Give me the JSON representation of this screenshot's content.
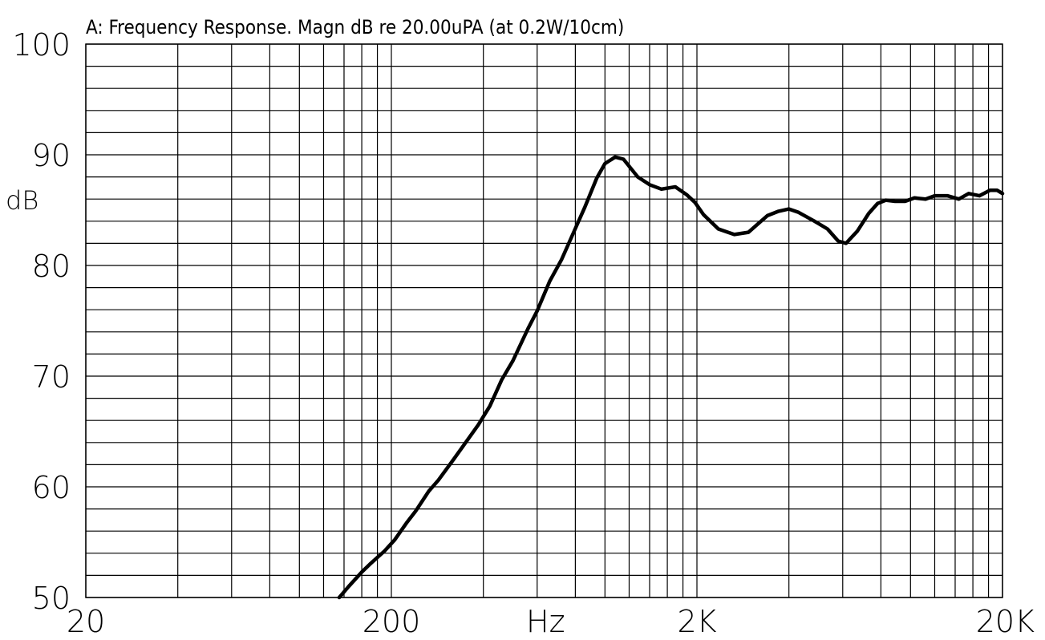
{
  "chart_data": {
    "type": "line",
    "title": "A: Frequency Response. Magn dB re 20.00uPA (at 0.2W/10cm)",
    "xlabel": "Hz",
    "ylabel": "dB",
    "xscale": "log",
    "xlim": [
      20,
      20000
    ],
    "ylim": [
      50,
      100
    ],
    "grid": true,
    "legend": "none",
    "x_ticks": [
      {
        "value": 20,
        "label": "20"
      },
      {
        "value": 200,
        "label": "200"
      },
      {
        "value": 2000,
        "label": "2K"
      },
      {
        "value": 20000,
        "label": "20K"
      }
    ],
    "y_ticks": [
      {
        "value": 100,
        "label": "100"
      },
      {
        "value": 90,
        "label": "90"
      },
      {
        "value": 80,
        "label": "80"
      },
      {
        "value": 70,
        "label": "70"
      },
      {
        "value": 60,
        "label": "60"
      },
      {
        "value": 50,
        "label": "50"
      }
    ],
    "line_color": "#000000",
    "series": [
      {
        "x": [
          135,
          145,
          160,
          170,
          190,
          205,
          225,
          240,
          265,
          285,
          320,
          350,
          385,
          420,
          460,
          500,
          560,
          600,
          660,
          720,
          790,
          860,
          940,
          1000,
          1080,
          1150,
          1280,
          1400,
          1530,
          1700,
          1850,
          1970,
          2100,
          2350,
          2650,
          2950,
          3150,
          3400,
          3700,
          4000,
          4300,
          4850,
          5350,
          5800,
          6150,
          6700,
          7300,
          7800,
          8300,
          8900,
          9600,
          10300,
          11200,
          12000,
          13200,
          14400,
          15500,
          16800,
          18200,
          19200,
          20000
        ],
        "y": [
          50.0,
          51.0,
          52.3,
          53.0,
          54.2,
          55.2,
          56.8,
          57.8,
          59.6,
          60.6,
          62.5,
          64.0,
          65.6,
          67.3,
          69.7,
          71.4,
          74.3,
          75.9,
          78.6,
          80.5,
          83.0,
          85.3,
          87.9,
          89.2,
          89.8,
          89.6,
          88.0,
          87.3,
          86.9,
          87.1,
          86.4,
          85.7,
          84.6,
          83.3,
          82.8,
          83.0,
          83.7,
          84.5,
          84.9,
          85.1,
          84.8,
          84.0,
          83.3,
          82.2,
          82.0,
          83.1,
          84.7,
          85.6,
          85.9,
          85.8,
          85.8,
          86.1,
          86.0,
          86.3,
          86.3,
          86.0,
          86.5,
          86.3,
          86.8,
          86.8,
          86.5
        ]
      }
    ]
  }
}
